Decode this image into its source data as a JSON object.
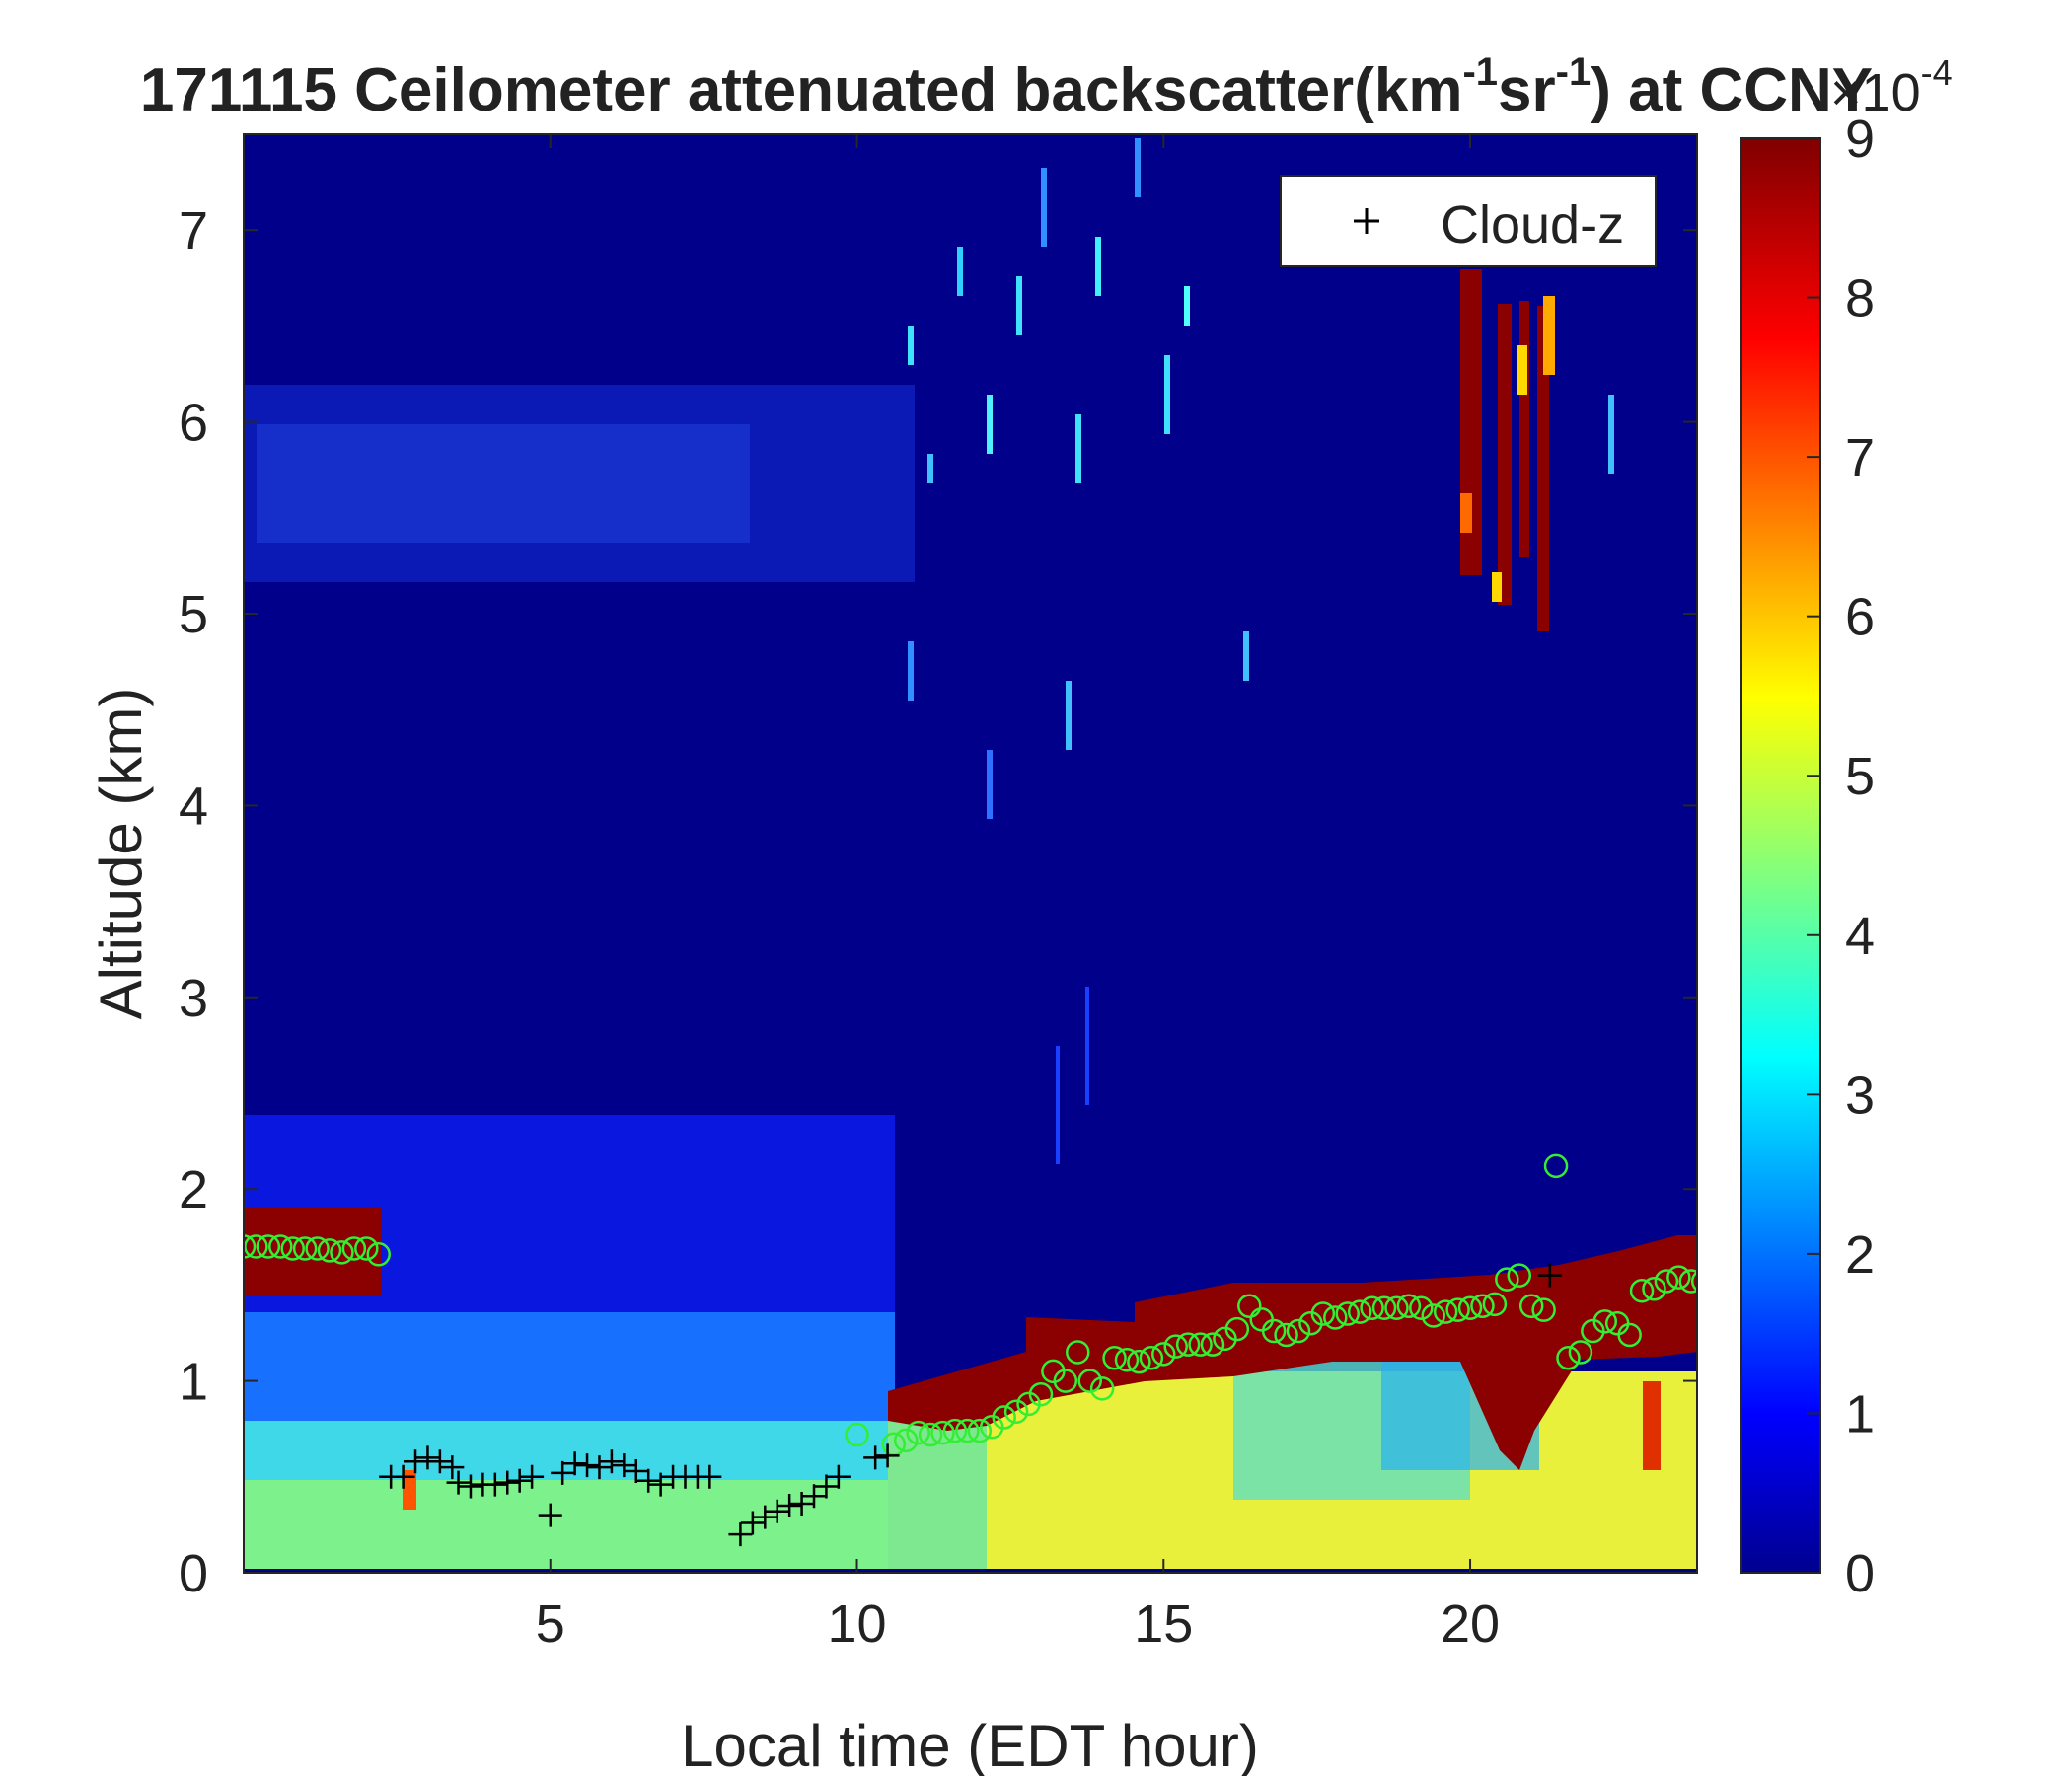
{
  "chart_data": {
    "type": "heatmap",
    "title_main": "171115 Ceilometer attenuated backscatter(km",
    "title_sup1": "-1",
    "title_mid": "sr",
    "title_sup2": "-1",
    "title_end": ") at CCNY",
    "xlabel": "Local time (EDT hour)",
    "ylabel": "Altitude (km)",
    "xlim": [
      0,
      23.7
    ],
    "ylim": [
      0,
      7.5
    ],
    "x_ticks": [
      {
        "value": 5,
        "label": "5"
      },
      {
        "value": 10,
        "label": "10"
      },
      {
        "value": 15,
        "label": "15"
      },
      {
        "value": 20,
        "label": "20"
      }
    ],
    "y_ticks": [
      {
        "value": 0,
        "label": "0"
      },
      {
        "value": 1,
        "label": "1"
      },
      {
        "value": 2,
        "label": "2"
      },
      {
        "value": 3,
        "label": "3"
      },
      {
        "value": 4,
        "label": "4"
      },
      {
        "value": 5,
        "label": "5"
      },
      {
        "value": 6,
        "label": "6"
      },
      {
        "value": 7,
        "label": "7"
      }
    ],
    "colorbar": {
      "colormap": "jet",
      "range": [
        0,
        9
      ],
      "multiplier_base": "×10",
      "multiplier_exp": "-4",
      "ticks": [
        {
          "value": 0,
          "label": "0"
        },
        {
          "value": 1,
          "label": "1"
        },
        {
          "value": 2,
          "label": "2"
        },
        {
          "value": 3,
          "label": "3"
        },
        {
          "value": 4,
          "label": "4"
        },
        {
          "value": 5,
          "label": "5"
        },
        {
          "value": 6,
          "label": "6"
        },
        {
          "value": 7,
          "label": "7"
        },
        {
          "value": 8,
          "label": "8"
        },
        {
          "value": 9,
          "label": "9"
        }
      ]
    },
    "legend": {
      "placement": "top-right",
      "entries": [
        {
          "marker": "+",
          "label": "Cloud-z"
        }
      ]
    },
    "series": [
      {
        "name": "Cloud-z",
        "marker": "plus",
        "color": "#000000",
        "points": [
          [
            2.4,
            0.5
          ],
          [
            2.6,
            0.5
          ],
          [
            2.8,
            0.58
          ],
          [
            3.0,
            0.6
          ],
          [
            3.2,
            0.58
          ],
          [
            3.4,
            0.55
          ],
          [
            3.5,
            0.47
          ],
          [
            3.7,
            0.45
          ],
          [
            3.9,
            0.46
          ],
          [
            4.1,
            0.46
          ],
          [
            4.3,
            0.47
          ],
          [
            4.5,
            0.48
          ],
          [
            4.7,
            0.5
          ],
          [
            5.0,
            0.3
          ],
          [
            5.2,
            0.52
          ],
          [
            5.4,
            0.57
          ],
          [
            5.6,
            0.56
          ],
          [
            5.8,
            0.55
          ],
          [
            6.0,
            0.58
          ],
          [
            6.2,
            0.56
          ],
          [
            6.4,
            0.53
          ],
          [
            6.6,
            0.48
          ],
          [
            6.8,
            0.46
          ],
          [
            7.0,
            0.5
          ],
          [
            7.2,
            0.5
          ],
          [
            7.4,
            0.5
          ],
          [
            7.6,
            0.5
          ],
          [
            8.1,
            0.2
          ],
          [
            8.3,
            0.26
          ],
          [
            8.5,
            0.29
          ],
          [
            8.7,
            0.32
          ],
          [
            8.9,
            0.35
          ],
          [
            9.1,
            0.36
          ],
          [
            9.3,
            0.4
          ],
          [
            9.5,
            0.45
          ],
          [
            9.7,
            0.5
          ],
          [
            10.3,
            0.6
          ],
          [
            10.5,
            0.61
          ],
          [
            21.3,
            1.55
          ]
        ]
      },
      {
        "marker": "circle",
        "color": "#33ee33",
        "points": [
          [
            0.0,
            1.7
          ],
          [
            0.2,
            1.7
          ],
          [
            0.4,
            1.7
          ],
          [
            0.6,
            1.7
          ],
          [
            0.8,
            1.69
          ],
          [
            1.0,
            1.69
          ],
          [
            1.2,
            1.69
          ],
          [
            1.4,
            1.68
          ],
          [
            1.6,
            1.67
          ],
          [
            1.8,
            1.69
          ],
          [
            2.0,
            1.69
          ],
          [
            2.2,
            1.66
          ],
          [
            10.0,
            0.72
          ],
          [
            10.6,
            0.67
          ],
          [
            10.8,
            0.69
          ],
          [
            11.0,
            0.73
          ],
          [
            11.2,
            0.72
          ],
          [
            11.4,
            0.73
          ],
          [
            11.6,
            0.74
          ],
          [
            11.8,
            0.74
          ],
          [
            12.0,
            0.74
          ],
          [
            12.2,
            0.76
          ],
          [
            12.4,
            0.81
          ],
          [
            12.6,
            0.84
          ],
          [
            12.8,
            0.88
          ],
          [
            13.0,
            0.93
          ],
          [
            13.2,
            1.05
          ],
          [
            13.4,
            1.0
          ],
          [
            13.6,
            1.15
          ],
          [
            13.8,
            1.0
          ],
          [
            14.0,
            0.96
          ],
          [
            14.2,
            1.12
          ],
          [
            14.4,
            1.11
          ],
          [
            14.6,
            1.1
          ],
          [
            14.8,
            1.12
          ],
          [
            15.0,
            1.14
          ],
          [
            15.2,
            1.18
          ],
          [
            15.4,
            1.19
          ],
          [
            15.6,
            1.19
          ],
          [
            15.8,
            1.19
          ],
          [
            16.0,
            1.22
          ],
          [
            16.2,
            1.27
          ],
          [
            16.4,
            1.39
          ],
          [
            16.6,
            1.32
          ],
          [
            16.8,
            1.26
          ],
          [
            17.0,
            1.24
          ],
          [
            17.2,
            1.26
          ],
          [
            17.4,
            1.3
          ],
          [
            17.6,
            1.35
          ],
          [
            17.8,
            1.33
          ],
          [
            18.0,
            1.35
          ],
          [
            18.2,
            1.36
          ],
          [
            18.4,
            1.38
          ],
          [
            18.6,
            1.38
          ],
          [
            18.8,
            1.38
          ],
          [
            19.0,
            1.39
          ],
          [
            19.2,
            1.38
          ],
          [
            19.4,
            1.34
          ],
          [
            19.6,
            1.36
          ],
          [
            19.8,
            1.37
          ],
          [
            20.0,
            1.38
          ],
          [
            20.2,
            1.39
          ],
          [
            20.4,
            1.4
          ],
          [
            20.6,
            1.53
          ],
          [
            20.8,
            1.55
          ],
          [
            21.0,
            1.39
          ],
          [
            21.2,
            1.37
          ],
          [
            21.4,
            2.12
          ],
          [
            21.6,
            1.12
          ],
          [
            21.8,
            1.15
          ],
          [
            22.0,
            1.26
          ],
          [
            22.2,
            1.31
          ],
          [
            22.4,
            1.3
          ],
          [
            22.6,
            1.24
          ],
          [
            22.8,
            1.47
          ],
          [
            23.0,
            1.48
          ],
          [
            23.2,
            1.52
          ],
          [
            23.4,
            1.54
          ],
          [
            23.6,
            1.52
          ],
          [
            23.8,
            1.52
          ],
          [
            24.0,
            1.52
          ]
        ]
      }
    ]
  }
}
